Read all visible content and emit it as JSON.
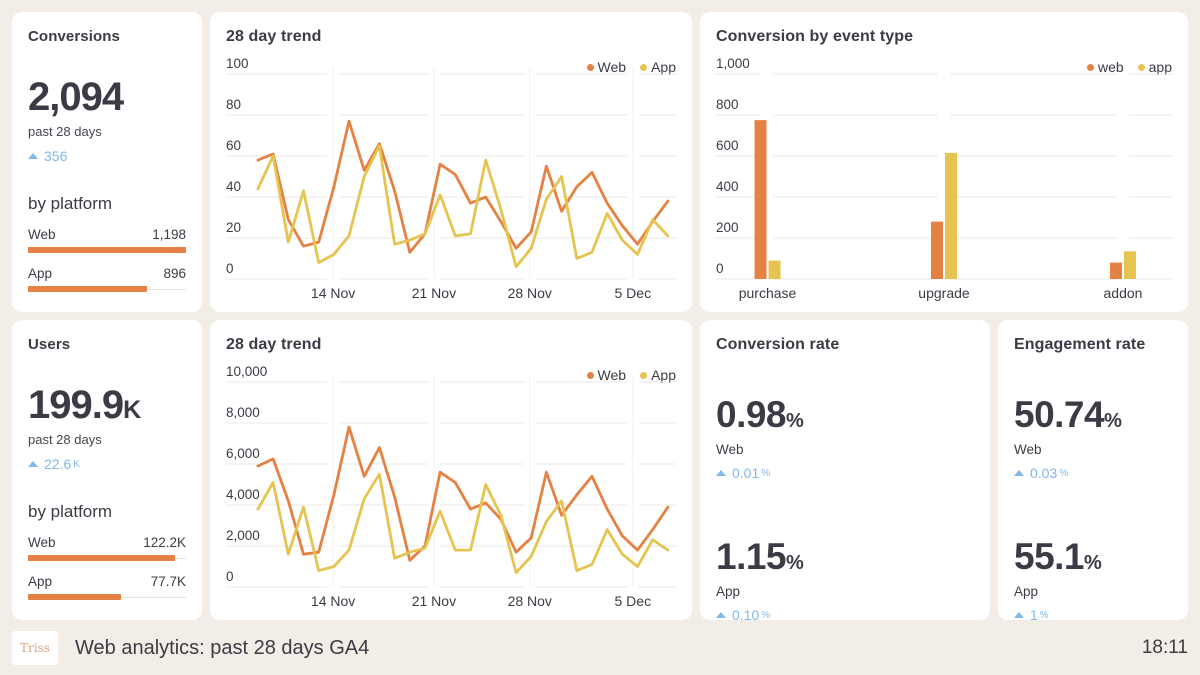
{
  "colors": {
    "background": "#F2EDE7",
    "card": "#FFFFFF",
    "text": "#3C3B45",
    "accent_web": "#E58142",
    "accent_app": "#E5C451",
    "delta_blue": "#7FB8EA",
    "grid": "#ECEAE4",
    "grid_vertical": "#F3F1EC"
  },
  "kpi_cards": {
    "conversions": {
      "title": "Conversions",
      "value": "2,094",
      "value_suffix": "",
      "caption": "past 28 days",
      "delta": "356",
      "delta_suffix": "",
      "section_label": "by platform",
      "rows": [
        {
          "label": "Web",
          "value": "1,198",
          "pct": 100
        },
        {
          "label": "App",
          "value": "896",
          "pct": 75
        }
      ]
    },
    "users": {
      "title": "Users",
      "value": "199.9",
      "value_suffix": "K",
      "caption": "past 28 days",
      "delta": "22.6",
      "delta_suffix": "K",
      "section_label": "by platform",
      "rows": [
        {
          "label": "Web",
          "value": "122.2K",
          "pct": 93
        },
        {
          "label": "App",
          "value": "77.7K",
          "pct": 59
        }
      ]
    }
  },
  "rate_cards": {
    "conversion_rate": {
      "title": "Conversion rate",
      "metrics": [
        {
          "value": "0.98",
          "suffix": "%",
          "label": "Web",
          "delta": "0.01",
          "delta_suffix": "%"
        },
        {
          "value": "1.15",
          "suffix": "%",
          "label": "App",
          "delta": "0.10",
          "delta_suffix": "%"
        }
      ]
    },
    "engagement_rate": {
      "title": "Engagement rate",
      "metrics": [
        {
          "value": "50.74",
          "suffix": "%",
          "label": "Web",
          "delta": "0.03",
          "delta_suffix": "%"
        },
        {
          "value": "55.1",
          "suffix": "%",
          "label": "App",
          "delta": "1",
          "delta_suffix": "%"
        }
      ]
    }
  },
  "chart_data": [
    {
      "id": "trend-conversions",
      "type": "line",
      "title": "28 day trend",
      "ylim": [
        0,
        100
      ],
      "yticks": [
        "100",
        "80",
        "60",
        "40",
        "20",
        "0"
      ],
      "xticks": [
        {
          "label": "14 Nov",
          "f": 0.238
        },
        {
          "label": "21 Nov",
          "f": 0.462
        },
        {
          "label": "28 Nov",
          "f": 0.675
        },
        {
          "label": "5 Dec",
          "f": 0.904
        }
      ],
      "grid": true,
      "legend_position": "top-right",
      "series": [
        {
          "name": "Web",
          "color": "web",
          "values": [
            58,
            61,
            29,
            16,
            18,
            45,
            77,
            53,
            66,
            43,
            13,
            22,
            56,
            51,
            37,
            40,
            28,
            15,
            23,
            55,
            33,
            45,
            52,
            37,
            26,
            17,
            28,
            38
          ]
        },
        {
          "name": "App",
          "color": "app",
          "values": [
            44,
            60,
            18,
            43,
            8,
            12,
            21,
            50,
            65,
            17,
            19,
            22,
            41,
            21,
            22,
            58,
            34,
            6,
            15,
            39,
            50,
            10,
            13,
            32,
            19,
            12,
            29,
            21
          ]
        }
      ]
    },
    {
      "id": "trend-users",
      "type": "line",
      "title": "28 day trend",
      "ylim": [
        0,
        10000
      ],
      "yticks": [
        "10,000",
        "8,000",
        "6,000",
        "4,000",
        "2,000",
        "0"
      ],
      "xticks": [
        {
          "label": "14 Nov",
          "f": 0.238
        },
        {
          "label": "21 Nov",
          "f": 0.462
        },
        {
          "label": "28 Nov",
          "f": 0.675
        },
        {
          "label": "5 Dec",
          "f": 0.904
        }
      ],
      "grid": true,
      "legend_position": "top-right",
      "series": [
        {
          "name": "Web",
          "color": "web",
          "values": [
            5900,
            6250,
            4200,
            1600,
            1700,
            4500,
            7800,
            5400,
            6800,
            4400,
            1300,
            2000,
            5600,
            5100,
            3800,
            4100,
            3300,
            1700,
            2400,
            5600,
            3500,
            4500,
            5400,
            3800,
            2500,
            1800,
            2800,
            3900
          ]
        },
        {
          "name": "App",
          "color": "app",
          "values": [
            3800,
            5100,
            1600,
            3900,
            800,
            1000,
            1800,
            4300,
            5500,
            1400,
            1700,
            1900,
            3700,
            1800,
            1800,
            5000,
            3500,
            700,
            1500,
            3200,
            4200,
            800,
            1100,
            2800,
            1600,
            1000,
            2300,
            1800
          ]
        }
      ]
    },
    {
      "id": "conversion-by-event-type",
      "type": "bar",
      "title": "Conversion by event type",
      "ylim": [
        0,
        1000
      ],
      "yticks": [
        "1,000",
        "800",
        "600",
        "400",
        "200",
        "0"
      ],
      "categories": [
        {
          "label": "purchase",
          "f": 0.113
        },
        {
          "label": "upgrade",
          "f": 0.5
        },
        {
          "label": "addon",
          "f": 0.8925
        }
      ],
      "grid": true,
      "legend_position": "top-right",
      "series": [
        {
          "name": "web",
          "color": "web",
          "values": [
            775,
            280,
            80
          ]
        },
        {
          "name": "app",
          "color": "app",
          "values": [
            90,
            615,
            135
          ]
        }
      ]
    }
  ],
  "footer": {
    "logo": "Triss",
    "title": "Web analytics: past 28 days GA4",
    "time": "18:11"
  }
}
